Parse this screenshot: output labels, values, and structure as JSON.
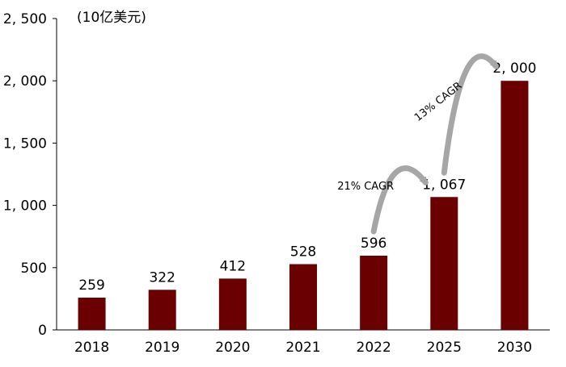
{
  "chart_data": {
    "type": "bar",
    "unit_label": "(10亿美元)",
    "categories": [
      "2018",
      "2019",
      "2020",
      "2021",
      "2022",
      "2025",
      "2030"
    ],
    "values": [
      259,
      322,
      412,
      528,
      596,
      1067,
      2000
    ],
    "value_labels": [
      "259",
      "322",
      "412",
      "528",
      "596",
      "1, 067",
      "2, 000"
    ],
    "ylim": [
      0,
      2500
    ],
    "yticks": [
      0,
      500,
      1000,
      1500,
      2000,
      2500
    ],
    "ytick_labels": [
      "0",
      "500",
      "1, 000",
      "1, 500",
      "2, 000",
      "2, 500"
    ],
    "bar_color": "#6B0000",
    "grid": false,
    "annotations": [
      {
        "text": "21% CAGR",
        "from_category": "2022",
        "to_category": "2025"
      },
      {
        "text": "13% CAGR",
        "from_category": "2025",
        "to_category": "2030"
      }
    ],
    "arrow_color": "#A6A6A6"
  }
}
